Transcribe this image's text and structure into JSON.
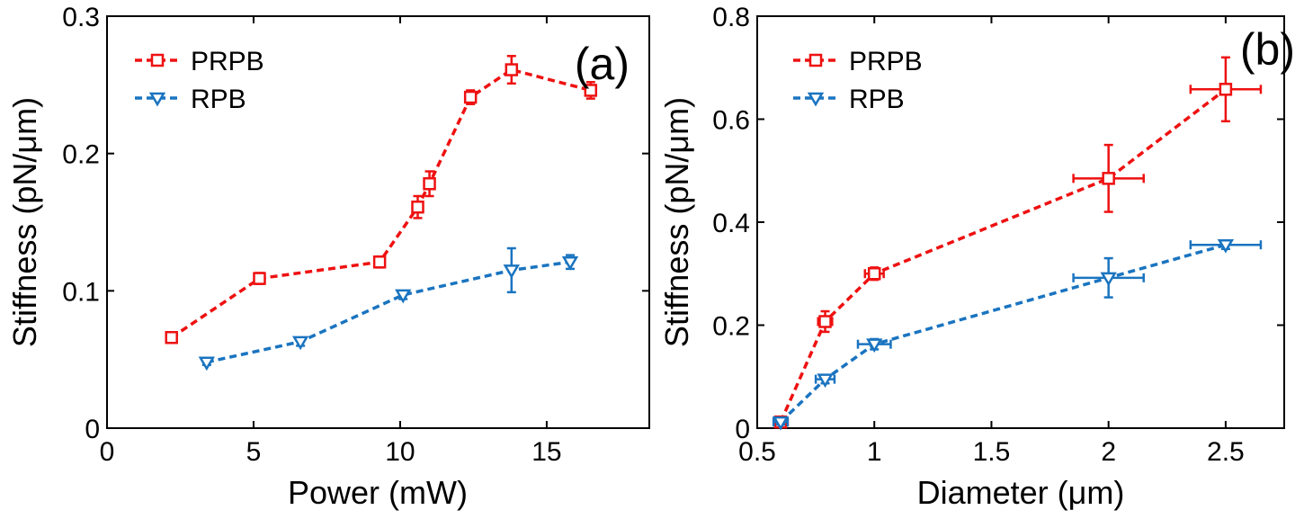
{
  "chart_data": [
    {
      "type": "line",
      "panel_label": "(a)",
      "xlabel": "Power (mW)",
      "ylabel": "Stiffness (pN/μm)",
      "xlim": [
        0,
        18.5
      ],
      "ylim": [
        0,
        0.3
      ],
      "xticks": [
        0,
        5,
        10,
        15
      ],
      "xtick_labels": [
        "0",
        "5",
        "10",
        "15"
      ],
      "yticks": [
        0,
        0.1,
        0.2,
        0.3
      ],
      "ytick_labels": [
        "0",
        "0.1",
        "0.2",
        "0.3"
      ],
      "legend_position": "top-left",
      "grid": false,
      "series": [
        {
          "name": "PRPB",
          "color": "#ee1111",
          "marker": "square",
          "x": [
            2.2,
            5.2,
            9.3,
            10.6,
            11.0,
            12.4,
            13.8,
            16.5
          ],
          "y": [
            0.066,
            0.109,
            0.121,
            0.161,
            0.178,
            0.241,
            0.261,
            0.246
          ],
          "yerr": [
            0.003,
            0.004,
            0.004,
            0.008,
            0.009,
            0.005,
            0.01,
            0.006
          ],
          "xerr": [
            0,
            0,
            0,
            0,
            0,
            0,
            0,
            0
          ]
        },
        {
          "name": "RPB",
          "color": "#1a74c0",
          "marker": "triangle-down",
          "x": [
            3.4,
            6.6,
            10.1,
            13.8,
            15.8
          ],
          "y": [
            0.048,
            0.063,
            0.097,
            0.115,
            0.121
          ],
          "yerr": [
            0.002,
            0.003,
            0.003,
            0.016,
            0.005
          ],
          "xerr": [
            0,
            0,
            0,
            0,
            0
          ]
        }
      ]
    },
    {
      "type": "line",
      "panel_label": "(b)",
      "xlabel": "Diameter (μm)",
      "ylabel": "Stiffness (pN/μm)",
      "xlim": [
        0.5,
        2.75
      ],
      "ylim": [
        0,
        0.8
      ],
      "xticks": [
        0.5,
        1,
        1.5,
        2,
        2.5
      ],
      "xtick_labels": [
        "0.5",
        "1",
        "1.5",
        "2",
        "2.5"
      ],
      "yticks": [
        0,
        0.2,
        0.4,
        0.6,
        0.8
      ],
      "ytick_labels": [
        "0",
        "0.2",
        "0.4",
        "0.6",
        "0.8"
      ],
      "legend_position": "top-left",
      "grid": false,
      "series": [
        {
          "name": "PRPB",
          "color": "#ee1111",
          "marker": "square",
          "x": [
            0.6,
            0.79,
            1.0,
            2.0,
            2.5
          ],
          "y": [
            0.012,
            0.207,
            0.3,
            0.485,
            0.658
          ],
          "yerr": [
            0.01,
            0.02,
            0.012,
            0.065,
            0.062
          ],
          "xerr": [
            0.03,
            0.03,
            0.04,
            0.15,
            0.15
          ]
        },
        {
          "name": "RPB",
          "color": "#1a74c0",
          "marker": "triangle-down",
          "x": [
            0.6,
            0.79,
            1.0,
            2.0,
            2.5
          ],
          "y": [
            0.012,
            0.095,
            0.163,
            0.292,
            0.356
          ],
          "yerr": [
            0.005,
            0.008,
            0.01,
            0.038,
            0.008
          ],
          "xerr": [
            0.03,
            0.04,
            0.07,
            0.15,
            0.15
          ]
        }
      ]
    }
  ]
}
